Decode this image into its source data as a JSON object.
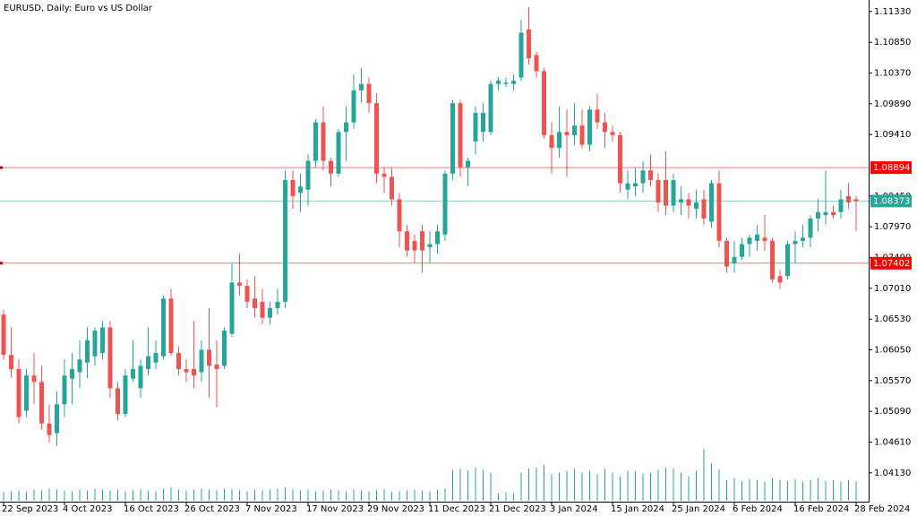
{
  "chart_data": {
    "type": "candlestick",
    "title": "EURUSD, Daily:  Euro vs US Dollar",
    "categories": [
      "22 Sep 2023",
      null,
      null,
      null,
      null,
      null,
      null,
      null,
      "4 Oct 2023",
      null,
      null,
      null,
      null,
      null,
      null,
      null,
      "16 Oct 2023",
      null,
      null,
      null,
      null,
      null,
      null,
      null,
      "26 Oct 2023",
      null,
      null,
      null,
      null,
      null,
      null,
      null,
      "7 Nov 2023",
      null,
      null,
      null,
      null,
      null,
      null,
      null,
      "17 Nov 2023",
      null,
      null,
      null,
      null,
      null,
      null,
      null,
      "29 Nov 2023",
      null,
      null,
      null,
      null,
      null,
      null,
      null,
      "11 Dec 2023",
      null,
      null,
      null,
      null,
      null,
      null,
      null,
      "21 Dec 2023",
      null,
      null,
      null,
      null,
      null,
      null,
      null,
      "3 Jan 2024",
      null,
      null,
      null,
      null,
      null,
      null,
      null,
      "15 Jan 2024",
      null,
      null,
      null,
      null,
      null,
      null,
      null,
      "25 Jan 2024",
      null,
      null,
      null,
      null,
      null,
      null,
      null,
      "6 Feb 2024",
      null,
      null,
      null,
      null,
      null,
      null,
      null,
      "16 Feb 2024",
      null,
      null,
      null,
      null,
      null,
      null,
      null,
      "28 Feb 2024"
    ],
    "open": [
      1.066,
      1.0597,
      1.0575,
      1.051,
      1.0565,
      1.0555,
      1.049,
      1.0475,
      1.052,
      1.056,
      1.057,
      1.0585,
      1.0595,
      1.06,
      1.064,
      1.0545,
      1.0505,
      1.056,
      1.0545,
      1.0575,
      1.0585,
      1.0595,
      1.0685,
      1.06,
      1.0575,
      1.0575,
      1.057,
      1.0605,
      1.0582,
      1.058,
      1.063,
      1.071,
      1.0705,
      1.0685,
      1.068,
      1.0655,
      1.067,
      1.068,
      1.087,
      1.085,
      1.0855,
      1.09,
      1.096,
      1.09,
      1.088,
      1.0945,
      1.096,
      1.101,
      1.102,
      1.099,
      1.088,
      1.0875,
      1.084,
      1.079,
      1.0775,
      1.079,
      1.0765,
      1.077,
      1.0785,
      1.088,
      1.099,
      1.089,
      1.093,
      1.0945,
      1.0945,
      1.102,
      1.102,
      1.102,
      1.103,
      1.1105,
      1.1065,
      1.104,
      1.094,
      1.092,
      1.0945,
      1.094,
      1.0955,
      1.0925,
      1.098,
      1.096,
      1.0945,
      1.094,
      1.0855,
      1.086,
      1.0865,
      1.0885,
      1.087,
      1.087,
      1.083,
      1.0835,
      1.084,
      1.0825,
      1.084,
      1.0805,
      1.0865,
      1.0775,
      1.074,
      1.075,
      1.077,
      1.0775,
      1.078,
      1.0775,
      1.072,
      1.072,
      1.077,
      1.0775,
      1.078,
      1.081,
      1.0815,
      1.082,
      1.082,
      1.0845,
      1.084
    ],
    "high": [
      1.0667,
      1.064,
      1.059,
      1.0575,
      1.06,
      1.058,
      1.052,
      1.054,
      1.059,
      1.06,
      1.062,
      1.064,
      1.064,
      1.065,
      1.065,
      1.0555,
      1.0575,
      1.062,
      1.059,
      1.064,
      1.062,
      1.069,
      1.07,
      1.061,
      1.059,
      1.065,
      1.062,
      1.067,
      1.062,
      1.064,
      1.074,
      1.0755,
      1.0715,
      1.072,
      1.07,
      1.068,
      1.07,
      1.0885,
      1.0885,
      1.088,
      1.091,
      1.0965,
      1.0985,
      1.0905,
      1.095,
      1.0985,
      1.1035,
      1.1045,
      1.103,
      1.1005,
      1.089,
      1.089,
      1.085,
      1.08,
      1.0785,
      1.08,
      1.079,
      1.08,
      1.0885,
      1.0995,
      1.0995,
      1.0905,
      1.0985,
      1.099,
      1.1025,
      1.103,
      1.103,
      1.1035,
      1.112,
      1.114,
      1.107,
      1.1045,
      1.096,
      1.0985,
      1.098,
      1.099,
      1.098,
      1.0985,
      1.1005,
      1.0975,
      1.0955,
      1.0945,
      1.0885,
      1.089,
      1.09,
      1.091,
      1.088,
      1.0915,
      1.088,
      1.086,
      1.085,
      1.0855,
      1.0855,
      1.087,
      1.0885,
      1.078,
      1.0775,
      1.078,
      1.0785,
      1.08,
      1.0815,
      1.078,
      1.073,
      1.0775,
      1.079,
      1.08,
      1.0815,
      1.084,
      1.0885,
      1.083,
      1.0855,
      1.0865,
      1.0845
    ],
    "low": [
      1.059,
      1.0562,
      1.049,
      1.05,
      1.052,
      1.048,
      1.046,
      1.0455,
      1.05,
      1.052,
      1.0545,
      1.056,
      1.058,
      1.059,
      1.053,
      1.0495,
      1.05,
      1.0555,
      1.053,
      1.0565,
      1.0575,
      1.059,
      1.0595,
      1.0565,
      1.0555,
      1.0545,
      1.0555,
      1.053,
      1.0515,
      1.0575,
      1.0625,
      1.069,
      1.067,
      1.0655,
      1.0645,
      1.0645,
      1.066,
      1.067,
      1.0825,
      1.082,
      1.083,
      1.089,
      1.0885,
      1.086,
      1.0875,
      1.09,
      1.095,
      1.099,
      1.0975,
      1.0865,
      1.085,
      1.083,
      1.0765,
      1.075,
      1.074,
      1.0725,
      1.074,
      1.0755,
      1.0775,
      1.087,
      1.0875,
      1.086,
      1.091,
      1.093,
      1.094,
      1.101,
      1.1015,
      1.101,
      1.1025,
      1.105,
      1.103,
      1.0935,
      1.088,
      1.0905,
      1.0875,
      1.0925,
      1.092,
      1.0915,
      1.095,
      1.092,
      1.093,
      1.085,
      1.084,
      1.0845,
      1.085,
      1.086,
      1.082,
      1.0815,
      1.082,
      1.0815,
      1.081,
      1.081,
      1.08,
      1.0795,
      1.0765,
      1.0725,
      1.0725,
      1.0745,
      1.075,
      1.076,
      1.076,
      1.071,
      1.07,
      1.0715,
      1.074,
      1.0765,
      1.0765,
      1.079,
      1.08,
      1.081,
      1.081,
      1.0825,
      1.079
    ],
    "close": [
      1.0597,
      1.0575,
      1.05,
      1.0565,
      1.0555,
      1.049,
      1.0472,
      1.052,
      1.0565,
      1.0575,
      1.059,
      1.062,
      1.0635,
      1.064,
      1.0545,
      1.0505,
      1.0565,
      1.0575,
      1.058,
      1.0595,
      1.06,
      1.0685,
      1.06,
      1.0575,
      1.057,
      1.0565,
      1.0605,
      1.058,
      1.0575,
      1.0635,
      1.071,
      1.0705,
      1.068,
      1.067,
      1.0655,
      1.067,
      1.068,
      1.087,
      1.0845,
      1.086,
      1.09,
      1.096,
      1.09,
      1.088,
      1.0945,
      1.096,
      1.101,
      1.102,
      1.099,
      1.088,
      1.0875,
      1.084,
      1.079,
      1.076,
      1.076,
      1.076,
      1.077,
      1.079,
      1.088,
      1.099,
      1.089,
      1.09,
      1.0975,
      1.0975,
      1.102,
      1.1025,
      1.1022,
      1.1025,
      1.11,
      1.106,
      1.104,
      1.094,
      1.092,
      1.0945,
      1.094,
      1.0955,
      1.0925,
      1.098,
      1.096,
      1.0945,
      1.094,
      1.0865,
      1.0865,
      1.0865,
      1.0885,
      1.087,
      1.0835,
      1.083,
      1.087,
      1.084,
      1.083,
      1.0835,
      1.081,
      1.0865,
      1.0775,
      1.0735,
      1.075,
      1.077,
      1.078,
      1.0785,
      1.0775,
      1.0715,
      1.071,
      1.077,
      1.0775,
      1.078,
      1.081,
      1.082,
      1.082,
      1.0815,
      1.084,
      1.0835,
      1.0837
    ],
    "volume": [
      9,
      10,
      11,
      10,
      12,
      11,
      13,
      12,
      11,
      10,
      12,
      11,
      13,
      12,
      11,
      12,
      10,
      11,
      12,
      11,
      10,
      13,
      14,
      12,
      11,
      12,
      13,
      12,
      11,
      13,
      12,
      11,
      10,
      12,
      11,
      12,
      13,
      14,
      12,
      11,
      12,
      10,
      11,
      12,
      11,
      10,
      12,
      11,
      10,
      11,
      12,
      9,
      10,
      11,
      12,
      11,
      10,
      12,
      13,
      33,
      34,
      32,
      35,
      33,
      30,
      8,
      9,
      8,
      30,
      34,
      35,
      38,
      28,
      30,
      32,
      34,
      30,
      32,
      28,
      34,
      30,
      26,
      32,
      31,
      29,
      30,
      33,
      35,
      34,
      30,
      26,
      32,
      55,
      40,
      33,
      22,
      24,
      21,
      23,
      22,
      20,
      24,
      22,
      21,
      23,
      20,
      22,
      24,
      21,
      22,
      20,
      22,
      21
    ],
    "up_color": "#26a69a",
    "down_color": "#ef5350",
    "ylim": [
      1.0368,
      1.1151
    ],
    "yticks": [
      {
        "value": 1.1133,
        "label": "1.11330"
      },
      {
        "value": 1.1085,
        "label": "1.10850"
      },
      {
        "value": 1.1037,
        "label": "1.10370"
      },
      {
        "value": 1.0989,
        "label": "1.09890"
      },
      {
        "value": 1.0941,
        "label": "1.09410"
      },
      {
        "value": 1.0845,
        "label": "1.08450"
      },
      {
        "value": 1.0797,
        "label": "1.07970"
      },
      {
        "value": 1.0749,
        "label": "1.07490"
      },
      {
        "value": 1.0701,
        "label": "1.07010"
      },
      {
        "value": 1.0653,
        "label": "1.06530"
      },
      {
        "value": 1.0605,
        "label": "1.06050"
      },
      {
        "value": 1.0557,
        "label": "1.05570"
      },
      {
        "value": 1.0509,
        "label": "1.05090"
      },
      {
        "value": 1.0461,
        "label": "1.04610"
      },
      {
        "value": 1.0413,
        "label": "1.04130"
      }
    ],
    "levels": [
      {
        "value": 1.08894,
        "color": "#ff0000"
      },
      {
        "value": 1.07402,
        "color": "#ff0000"
      },
      {
        "value": 1.08373,
        "color": "#26a69a"
      }
    ],
    "grid": false
  }
}
